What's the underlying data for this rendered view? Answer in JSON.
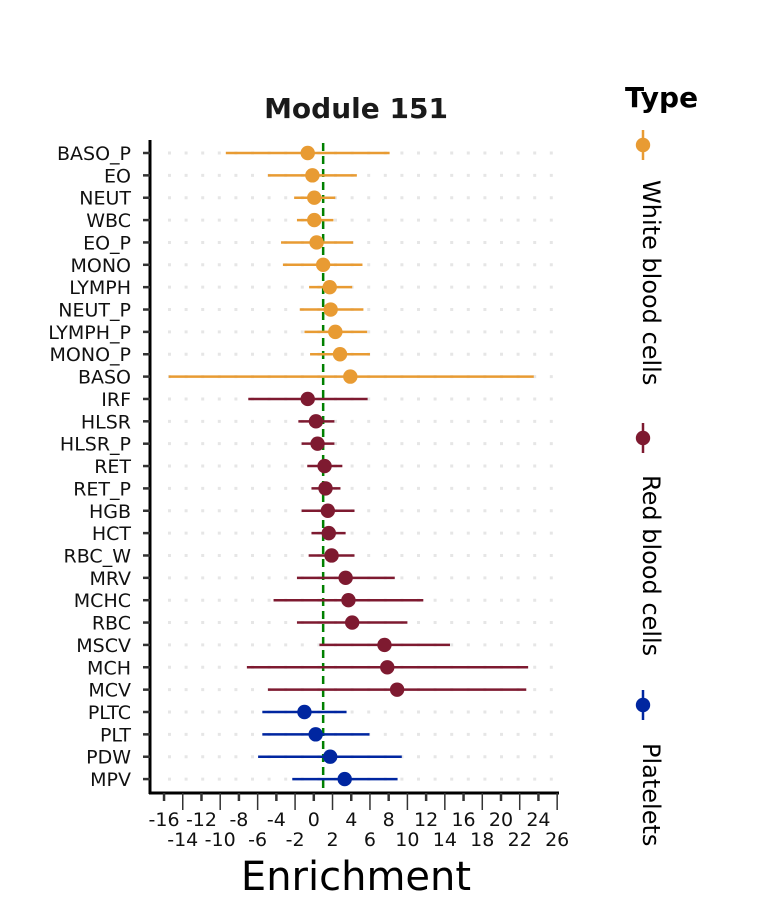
{
  "chart_data": {
    "type": "forest",
    "title": "Module 151",
    "xlabel": "Enrichment",
    "ylabel": "",
    "xlim": [
      -17,
      26.5
    ],
    "x_ticks": [
      -16,
      -14,
      -12,
      -10,
      -8,
      -6,
      -4,
      -2,
      0,
      2,
      4,
      6,
      8,
      10,
      12,
      14,
      16,
      18,
      20,
      22,
      24,
      26
    ],
    "reference_line": 1,
    "reference_line_color": "#008000",
    "grid": "dotted horizontal",
    "legend": {
      "title": "Type",
      "placement": "right",
      "entries": [
        {
          "name": "White blood cells",
          "color": "#E89B33"
        },
        {
          "name": "Red blood cells",
          "color": "#7E1A30"
        },
        {
          "name": "Platelets",
          "color": "#0026A0"
        }
      ]
    },
    "rows": [
      {
        "label": "BASO_P",
        "type": 0,
        "value": -0.65,
        "lo": -9.4,
        "hi": 8.1
      },
      {
        "label": "EO",
        "type": 0,
        "value": -0.15,
        "lo": -4.9,
        "hi": 4.6
      },
      {
        "label": "NEUT",
        "type": 0,
        "value": 0.05,
        "lo": -2.1,
        "hi": 2.3
      },
      {
        "label": "WBC",
        "type": 0,
        "value": 0.05,
        "lo": -1.8,
        "hi": 2.1
      },
      {
        "label": "EO_P",
        "type": 0,
        "value": 0.3,
        "lo": -3.5,
        "hi": 4.2
      },
      {
        "label": "MONO",
        "type": 0,
        "value": 1.0,
        "lo": -3.3,
        "hi": 5.2
      },
      {
        "label": "LYMPH",
        "type": 0,
        "value": 1.7,
        "lo": -0.5,
        "hi": 4.1
      },
      {
        "label": "NEUT_P",
        "type": 0,
        "value": 1.8,
        "lo": -1.5,
        "hi": 5.3
      },
      {
        "label": "LYMPH_P",
        "type": 0,
        "value": 2.3,
        "lo": -1.0,
        "hi": 5.7
      },
      {
        "label": "MONO_P",
        "type": 0,
        "value": 2.8,
        "lo": -0.4,
        "hi": 6.0
      },
      {
        "label": "BASO",
        "type": 0,
        "value": 3.9,
        "lo": -15.5,
        "hi": 23.5
      },
      {
        "label": "IRF",
        "type": 1,
        "value": -0.65,
        "lo": -7.0,
        "hi": 5.75
      },
      {
        "label": "HLSR",
        "type": 1,
        "value": 0.23,
        "lo": -1.65,
        "hi": 2.2
      },
      {
        "label": "HLSR_P",
        "type": 1,
        "value": 0.4,
        "lo": -1.3,
        "hi": 2.2
      },
      {
        "label": "RET",
        "type": 1,
        "value": 1.15,
        "lo": -0.7,
        "hi": 3.05
      },
      {
        "label": "RET_P",
        "type": 1,
        "value": 1.25,
        "lo": -0.25,
        "hi": 2.85
      },
      {
        "label": "HGB",
        "type": 1,
        "value": 1.5,
        "lo": -1.3,
        "hi": 4.35
      },
      {
        "label": "HCT",
        "type": 1,
        "value": 1.6,
        "lo": -0.25,
        "hi": 3.4
      },
      {
        "label": "RBC_W",
        "type": 1,
        "value": 1.9,
        "lo": -0.55,
        "hi": 4.35
      },
      {
        "label": "MRV",
        "type": 1,
        "value": 3.4,
        "lo": -1.8,
        "hi": 8.65
      },
      {
        "label": "MCHC",
        "type": 1,
        "value": 3.7,
        "lo": -4.3,
        "hi": 11.7
      },
      {
        "label": "RBC",
        "type": 1,
        "value": 4.1,
        "lo": -1.8,
        "hi": 10.0
      },
      {
        "label": "MSCV",
        "type": 1,
        "value": 7.55,
        "lo": 0.6,
        "hi": 14.55
      },
      {
        "label": "MCH",
        "type": 1,
        "value": 7.85,
        "lo": -7.15,
        "hi": 22.9
      },
      {
        "label": "MCV",
        "type": 1,
        "value": 8.9,
        "lo": -4.9,
        "hi": 22.7
      },
      {
        "label": "PLTC",
        "type": 2,
        "value": -1.0,
        "lo": -5.5,
        "hi": 3.5
      },
      {
        "label": "PLT",
        "type": 2,
        "value": 0.2,
        "lo": -5.5,
        "hi": 5.95
      },
      {
        "label": "PDW",
        "type": 2,
        "value": 1.75,
        "lo": -5.95,
        "hi": 9.4
      },
      {
        "label": "MPV",
        "type": 2,
        "value": 3.3,
        "lo": -2.3,
        "hi": 8.95
      }
    ]
  }
}
